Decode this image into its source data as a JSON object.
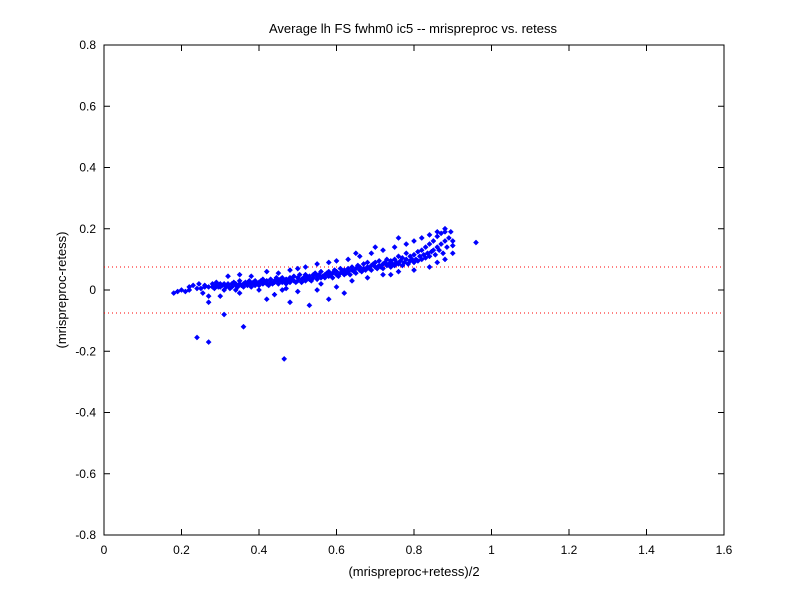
{
  "chart_data": {
    "type": "scatter",
    "title": "Average lh FS fwhm0 ic5 -- mrispreproc vs. retess",
    "xlabel": "(mrispreproc+retess)/2",
    "ylabel": "(mrispreproc-retess)",
    "xlim": [
      0,
      1.6
    ],
    "ylim": [
      -0.8,
      0.8
    ],
    "xticks": [
      0,
      0.2,
      0.4,
      0.6,
      0.8,
      1,
      1.2,
      1.4,
      1.6
    ],
    "xtick_labels": [
      "0",
      "0.2",
      "0.4",
      "0.6",
      "0.8",
      "1",
      "1.2",
      "1.4",
      "1.6"
    ],
    "yticks": [
      -0.8,
      -0.6,
      -0.4,
      -0.2,
      0,
      0.2,
      0.4,
      0.6,
      0.8
    ],
    "ytick_labels": [
      "-0.8",
      "-0.6",
      "-0.4",
      "-0.2",
      "0",
      "0.2",
      "0.4",
      "0.6",
      "0.8"
    ],
    "grid": false,
    "marker_color": "#0000ff",
    "reference_lines": [
      {
        "y": 0.075,
        "style": "dotted",
        "color": "#ff0000"
      },
      {
        "y": -0.075,
        "style": "dotted",
        "color": "#ff0000"
      }
    ],
    "points": [
      [
        0.18,
        -0.01
      ],
      [
        0.19,
        -0.005
      ],
      [
        0.2,
        0.0
      ],
      [
        0.21,
        -0.005
      ],
      [
        0.22,
        0.0
      ],
      [
        0.24,
        0.005
      ],
      [
        0.245,
        0.02
      ],
      [
        0.25,
        0.005
      ],
      [
        0.255,
        -0.01
      ],
      [
        0.26,
        0.015
      ],
      [
        0.26,
        0.01
      ],
      [
        0.27,
        0.01
      ],
      [
        0.27,
        -0.02
      ],
      [
        0.28,
        0.01
      ],
      [
        0.28,
        0.02
      ],
      [
        0.285,
        0.005
      ],
      [
        0.29,
        0.015
      ],
      [
        0.29,
        0.025
      ],
      [
        0.295,
        0.01
      ],
      [
        0.3,
        0.02
      ],
      [
        0.3,
        0.01
      ],
      [
        0.305,
        0.015
      ],
      [
        0.31,
        0.0
      ],
      [
        0.31,
        0.02
      ],
      [
        0.315,
        0.01
      ],
      [
        0.32,
        0.02
      ],
      [
        0.32,
        0.015
      ],
      [
        0.325,
        0.005
      ],
      [
        0.33,
        0.02
      ],
      [
        0.33,
        0.01
      ],
      [
        0.335,
        0.025
      ],
      [
        0.34,
        0.015
      ],
      [
        0.34,
        0.02
      ],
      [
        0.345,
        0.01
      ],
      [
        0.35,
        0.02
      ],
      [
        0.35,
        0.03
      ],
      [
        0.355,
        0.015
      ],
      [
        0.36,
        0.02
      ],
      [
        0.36,
        0.01
      ],
      [
        0.365,
        0.025
      ],
      [
        0.37,
        0.02
      ],
      [
        0.37,
        0.015
      ],
      [
        0.375,
        0.03
      ],
      [
        0.38,
        0.02
      ],
      [
        0.38,
        0.01
      ],
      [
        0.385,
        0.025
      ],
      [
        0.39,
        0.015
      ],
      [
        0.39,
        0.03
      ],
      [
        0.395,
        0.02
      ],
      [
        0.4,
        0.025
      ],
      [
        0.4,
        0.015
      ],
      [
        0.405,
        0.03
      ],
      [
        0.41,
        0.02
      ],
      [
        0.41,
        0.035
      ],
      [
        0.415,
        0.025
      ],
      [
        0.42,
        0.02
      ],
      [
        0.42,
        0.03
      ],
      [
        0.425,
        0.015
      ],
      [
        0.43,
        0.025
      ],
      [
        0.43,
        0.035
      ],
      [
        0.435,
        0.02
      ],
      [
        0.44,
        0.03
      ],
      [
        0.44,
        0.025
      ],
      [
        0.445,
        0.04
      ],
      [
        0.45,
        0.02
      ],
      [
        0.45,
        0.03
      ],
      [
        0.455,
        0.035
      ],
      [
        0.46,
        0.025
      ],
      [
        0.46,
        0.04
      ],
      [
        0.465,
        0.03
      ],
      [
        0.47,
        0.02
      ],
      [
        0.47,
        0.035
      ],
      [
        0.475,
        0.03
      ],
      [
        0.48,
        0.04
      ],
      [
        0.48,
        0.025
      ],
      [
        0.485,
        0.035
      ],
      [
        0.49,
        0.03
      ],
      [
        0.49,
        0.045
      ],
      [
        0.495,
        0.025
      ],
      [
        0.5,
        0.04
      ],
      [
        0.5,
        0.03
      ],
      [
        0.505,
        0.05
      ],
      [
        0.51,
        0.035
      ],
      [
        0.51,
        0.025
      ],
      [
        0.515,
        0.04
      ],
      [
        0.52,
        0.03
      ],
      [
        0.52,
        0.05
      ],
      [
        0.525,
        0.04
      ],
      [
        0.53,
        0.035
      ],
      [
        0.53,
        0.045
      ],
      [
        0.535,
        0.03
      ],
      [
        0.54,
        0.05
      ],
      [
        0.54,
        0.04
      ],
      [
        0.545,
        0.055
      ],
      [
        0.55,
        0.035
      ],
      [
        0.55,
        0.045
      ],
      [
        0.555,
        0.05
      ],
      [
        0.56,
        0.04
      ],
      [
        0.56,
        0.06
      ],
      [
        0.565,
        0.045
      ],
      [
        0.57,
        0.05
      ],
      [
        0.57,
        0.04
      ],
      [
        0.575,
        0.055
      ],
      [
        0.58,
        0.045
      ],
      [
        0.58,
        0.06
      ],
      [
        0.585,
        0.05
      ],
      [
        0.59,
        0.04
      ],
      [
        0.59,
        0.055
      ],
      [
        0.595,
        0.065
      ],
      [
        0.6,
        0.05
      ],
      [
        0.6,
        0.06
      ],
      [
        0.605,
        0.045
      ],
      [
        0.61,
        0.055
      ],
      [
        0.61,
        0.07
      ],
      [
        0.615,
        0.06
      ],
      [
        0.62,
        0.05
      ],
      [
        0.62,
        0.065
      ],
      [
        0.625,
        0.055
      ],
      [
        0.63,
        0.07
      ],
      [
        0.63,
        0.06
      ],
      [
        0.635,
        0.05
      ],
      [
        0.64,
        0.065
      ],
      [
        0.64,
        0.075
      ],
      [
        0.645,
        0.06
      ],
      [
        0.65,
        0.07
      ],
      [
        0.65,
        0.055
      ],
      [
        0.655,
        0.08
      ],
      [
        0.66,
        0.065
      ],
      [
        0.66,
        0.075
      ],
      [
        0.665,
        0.06
      ],
      [
        0.67,
        0.07
      ],
      [
        0.67,
        0.085
      ],
      [
        0.675,
        0.065
      ],
      [
        0.68,
        0.075
      ],
      [
        0.68,
        0.09
      ],
      [
        0.685,
        0.07
      ],
      [
        0.69,
        0.08
      ],
      [
        0.69,
        0.065
      ],
      [
        0.695,
        0.085
      ],
      [
        0.7,
        0.075
      ],
      [
        0.7,
        0.09
      ],
      [
        0.705,
        0.07
      ],
      [
        0.71,
        0.08
      ],
      [
        0.71,
        0.095
      ],
      [
        0.715,
        0.075
      ],
      [
        0.72,
        0.085
      ],
      [
        0.72,
        0.07
      ],
      [
        0.725,
        0.09
      ],
      [
        0.73,
        0.08
      ],
      [
        0.73,
        0.1
      ],
      [
        0.735,
        0.085
      ],
      [
        0.74,
        0.075
      ],
      [
        0.74,
        0.095
      ],
      [
        0.745,
        0.085
      ],
      [
        0.75,
        0.1
      ],
      [
        0.75,
        0.08
      ],
      [
        0.755,
        0.09
      ],
      [
        0.76,
        0.11
      ],
      [
        0.76,
        0.085
      ],
      [
        0.765,
        0.095
      ],
      [
        0.77,
        0.08
      ],
      [
        0.77,
        0.105
      ],
      [
        0.775,
        0.09
      ],
      [
        0.78,
        0.1
      ],
      [
        0.78,
        0.12
      ],
      [
        0.785,
        0.085
      ],
      [
        0.79,
        0.095
      ],
      [
        0.79,
        0.11
      ],
      [
        0.795,
        0.1
      ],
      [
        0.8,
        0.09
      ],
      [
        0.8,
        0.115
      ],
      [
        0.805,
        0.1
      ],
      [
        0.81,
        0.125
      ],
      [
        0.81,
        0.095
      ],
      [
        0.815,
        0.11
      ],
      [
        0.82,
        0.1
      ],
      [
        0.82,
        0.13
      ],
      [
        0.825,
        0.115
      ],
      [
        0.83,
        0.105
      ],
      [
        0.83,
        0.14
      ],
      [
        0.835,
        0.12
      ],
      [
        0.84,
        0.11
      ],
      [
        0.84,
        0.15
      ],
      [
        0.845,
        0.125
      ],
      [
        0.85,
        0.13
      ],
      [
        0.85,
        0.16
      ],
      [
        0.855,
        0.115
      ],
      [
        0.86,
        0.14
      ],
      [
        0.86,
        0.175
      ],
      [
        0.865,
        0.13
      ],
      [
        0.87,
        0.15
      ],
      [
        0.87,
        0.185
      ],
      [
        0.875,
        0.12
      ],
      [
        0.88,
        0.16
      ],
      [
        0.88,
        0.19
      ],
      [
        0.885,
        0.14
      ],
      [
        0.89,
        0.17
      ],
      [
        0.895,
        0.19
      ],
      [
        0.9,
        0.16
      ],
      [
        0.9,
        0.145
      ],
      [
        0.22,
        0.01
      ],
      [
        0.23,
        0.015
      ],
      [
        0.27,
        -0.04
      ],
      [
        0.3,
        -0.02
      ],
      [
        0.31,
        -0.08
      ],
      [
        0.35,
        -0.01
      ],
      [
        0.36,
        -0.12
      ],
      [
        0.24,
        -0.155
      ],
      [
        0.27,
        -0.17
      ],
      [
        0.465,
        -0.225
      ],
      [
        0.42,
        -0.03
      ],
      [
        0.44,
        -0.015
      ],
      [
        0.48,
        -0.04
      ],
      [
        0.5,
        -0.005
      ],
      [
        0.53,
        -0.05
      ],
      [
        0.58,
        -0.03
      ],
      [
        0.6,
        0.01
      ],
      [
        0.62,
        -0.01
      ],
      [
        0.55,
        0.0
      ],
      [
        0.47,
        0.005
      ],
      [
        0.32,
        0.045
      ],
      [
        0.35,
        0.05
      ],
      [
        0.38,
        0.045
      ],
      [
        0.42,
        0.06
      ],
      [
        0.45,
        0.055
      ],
      [
        0.48,
        0.065
      ],
      [
        0.5,
        0.07
      ],
      [
        0.52,
        0.075
      ],
      [
        0.55,
        0.085
      ],
      [
        0.58,
        0.09
      ],
      [
        0.6,
        0.095
      ],
      [
        0.63,
        0.1
      ],
      [
        0.66,
        0.11
      ],
      [
        0.69,
        0.12
      ],
      [
        0.72,
        0.13
      ],
      [
        0.75,
        0.14
      ],
      [
        0.78,
        0.15
      ],
      [
        0.8,
        0.16
      ],
      [
        0.82,
        0.17
      ],
      [
        0.84,
        0.18
      ],
      [
        0.86,
        0.19
      ],
      [
        0.88,
        0.2
      ],
      [
        0.76,
        0.17
      ],
      [
        0.7,
        0.14
      ],
      [
        0.65,
        0.12
      ],
      [
        0.96,
        0.155
      ],
      [
        0.34,
        0.0
      ],
      [
        0.4,
        0.0
      ],
      [
        0.46,
        0.0
      ],
      [
        0.56,
        0.02
      ],
      [
        0.64,
        0.03
      ],
      [
        0.68,
        0.04
      ],
      [
        0.72,
        0.05
      ],
      [
        0.76,
        0.06
      ],
      [
        0.8,
        0.065
      ],
      [
        0.84,
        0.075
      ],
      [
        0.86,
        0.09
      ],
      [
        0.88,
        0.1
      ],
      [
        0.9,
        0.12
      ],
      [
        0.74,
        0.05
      ]
    ]
  }
}
